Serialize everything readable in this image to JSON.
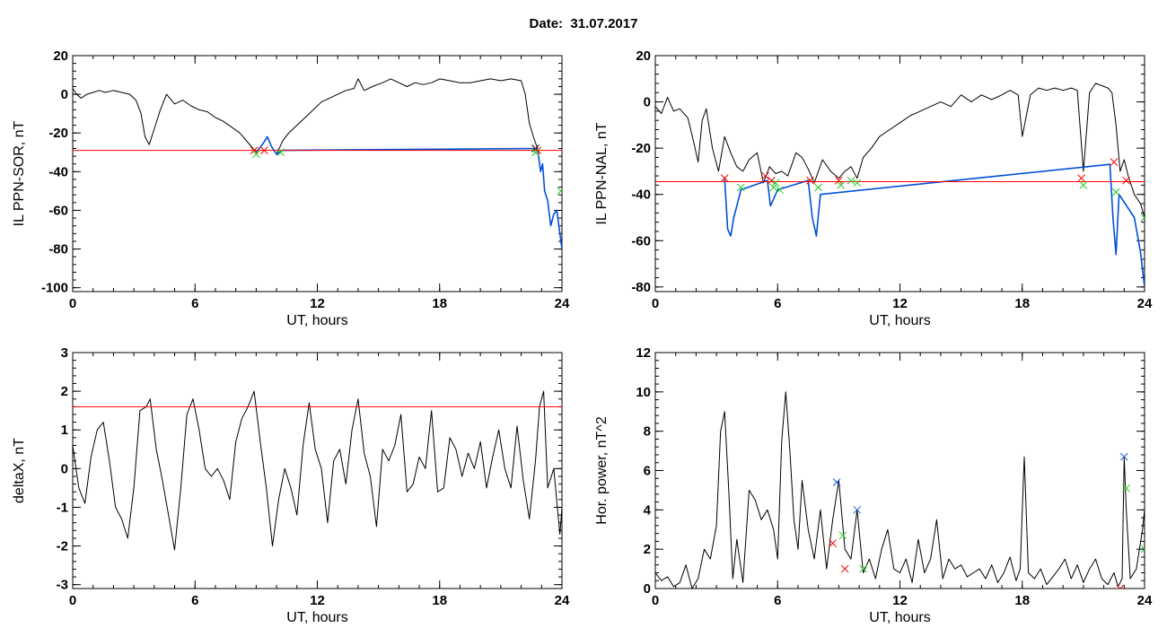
{
  "figure": {
    "title_label": "Date:",
    "title_value": "31.07.2017"
  },
  "colors": {
    "trace": "#000000",
    "threshold": "#ff0000",
    "highlight": "#0050d8",
    "cross_red": "#ff0000",
    "cross_green": "#22cc22",
    "cross_blue": "#1f5fd8",
    "cross_dark": "#000000"
  },
  "chart_data": [
    {
      "type": "line",
      "id": "ppn-sor",
      "xlabel": "UT, hours",
      "ylabel": "IL PPN-SOR, nT",
      "xlim": [
        0,
        24
      ],
      "ylim": [
        -102,
        20
      ],
      "xticks": [
        0,
        6,
        12,
        18,
        24
      ],
      "yticks": [
        20,
        0,
        -20,
        -40,
        -60,
        -80,
        -100
      ],
      "threshold": -29,
      "series": [
        {
          "style": "trace",
          "x": [
            0,
            0.2,
            0.4,
            0.7,
            1.0,
            1.3,
            1.6,
            2.0,
            2.4,
            2.8,
            3.1,
            3.35,
            3.55,
            3.75,
            4.0,
            4.3,
            4.6,
            5.0,
            5.4,
            5.8,
            6.2,
            6.6,
            7.0,
            7.4,
            7.8,
            8.2,
            8.6,
            9.0,
            9.3,
            9.55,
            9.75,
            10.0,
            10.3,
            10.6,
            11.0,
            11.4,
            11.8,
            12.2,
            12.6,
            13.0,
            13.4,
            13.8,
            14.0,
            14.3,
            14.7,
            15.2,
            15.6,
            16.0,
            16.4,
            16.8,
            17.2,
            17.6,
            18.0,
            18.5,
            19.0,
            19.5,
            20.0,
            20.5,
            21.0,
            21.5,
            22.0,
            22.2,
            22.4,
            22.6,
            22.8
          ],
          "y": [
            3,
            0,
            -2,
            0,
            1,
            2,
            1,
            2,
            1,
            0,
            -3,
            -10,
            -22,
            -26,
            -18,
            -8,
            0,
            -5,
            -3,
            -6,
            -8,
            -9,
            -12,
            -14,
            -17,
            -20,
            -25,
            -30,
            -26,
            -22,
            -27,
            -31,
            -24,
            -20,
            -16,
            -12,
            -8,
            -4,
            -2,
            0,
            2,
            3,
            8,
            2,
            4,
            6,
            8,
            6,
            4,
            6,
            5,
            6,
            8,
            7,
            6,
            6,
            7,
            8,
            7,
            8,
            7,
            0,
            -15,
            -22,
            -28
          ]
        },
        {
          "style": "highlight",
          "x": [
            9.0,
            9.3,
            9.55,
            9.75,
            10.0,
            10.3,
            22.8,
            22.95,
            23.05,
            23.15,
            23.3,
            23.45,
            23.6,
            23.75,
            23.9,
            24.0
          ],
          "y": [
            -30,
            -26,
            -22,
            -27,
            -31,
            -29,
            -28,
            -40,
            -36,
            -50,
            -55,
            -68,
            -62,
            -60,
            -72,
            -80
          ]
        }
      ],
      "markers": [
        {
          "x": 8.9,
          "y": -29,
          "color": "red"
        },
        {
          "x": 9.4,
          "y": -29,
          "color": "red"
        },
        {
          "x": 9.0,
          "y": -31,
          "color": "green"
        },
        {
          "x": 10.2,
          "y": -30,
          "color": "green"
        },
        {
          "x": 22.7,
          "y": -28,
          "color": "dark"
        },
        {
          "x": 22.8,
          "y": -29,
          "color": "red"
        },
        {
          "x": 22.7,
          "y": -30,
          "color": "green"
        },
        {
          "x": 23.95,
          "y": -50,
          "color": "green"
        }
      ]
    },
    {
      "type": "line",
      "id": "ppn-nal",
      "xlabel": "UT, hours",
      "ylabel": "IL PPN-NAL, nT",
      "xlim": [
        0,
        24
      ],
      "ylim": [
        -82,
        20
      ],
      "xticks": [
        0,
        6,
        12,
        18,
        24
      ],
      "yticks": [
        20,
        0,
        -20,
        -40,
        -60,
        -80
      ],
      "threshold": -34.5,
      "series": [
        {
          "style": "trace",
          "x": [
            0,
            0.3,
            0.6,
            0.9,
            1.2,
            1.6,
            1.9,
            2.1,
            2.3,
            2.5,
            2.8,
            3.1,
            3.4,
            3.7,
            4.0,
            4.3,
            4.6,
            5.0,
            5.3,
            5.6,
            5.9,
            6.2,
            6.5,
            6.9,
            7.2,
            7.5,
            7.8,
            8.2,
            8.6,
            9.0,
            9.3,
            9.6,
            9.9,
            10.2,
            10.6,
            11.0,
            11.5,
            12.0,
            12.5,
            13.0,
            13.5,
            14.0,
            14.5,
            15.0,
            15.5,
            16.0,
            16.5,
            17.0,
            17.4,
            17.8,
            18.0,
            18.4,
            18.8,
            19.2,
            19.6,
            20.0,
            20.4,
            20.7,
            21.0,
            21.3,
            21.6,
            21.9,
            22.2,
            22.4,
            22.6,
            22.8,
            23.0,
            23.2,
            23.5,
            23.8,
            24.0
          ],
          "y": [
            -2,
            -5,
            2,
            -4,
            -3,
            -7,
            -18,
            -26,
            -8,
            -3,
            -20,
            -30,
            -15,
            -22,
            -28,
            -30,
            -25,
            -22,
            -35,
            -28,
            -31,
            -30,
            -32,
            -22,
            -24,
            -29,
            -35,
            -25,
            -30,
            -33,
            -30,
            -28,
            -33,
            -24,
            -20,
            -15,
            -12,
            -9,
            -6,
            -4,
            -2,
            0,
            -2,
            3,
            0,
            3,
            1,
            3,
            5,
            3,
            -15,
            3,
            6,
            5,
            6,
            5,
            6,
            5,
            -30,
            4,
            8,
            7,
            6,
            4,
            -10,
            -30,
            -25,
            -32,
            -40,
            -44,
            -50
          ]
        },
        {
          "style": "highlight",
          "x": [
            3.4,
            3.55,
            3.7,
            3.85,
            4.0,
            4.2,
            5.5,
            5.65,
            5.8,
            6.0,
            7.5,
            7.7,
            7.9,
            8.1,
            22.3,
            22.45,
            22.6,
            22.75,
            23.5,
            23.6,
            23.8,
            24.0
          ],
          "y": [
            -33,
            -55,
            -58,
            -50,
            -45,
            -38,
            -34,
            -45,
            -42,
            -38,
            -34,
            -50,
            -58,
            -40,
            -27,
            -50,
            -66,
            -40,
            -50,
            -55,
            -65,
            -80
          ]
        }
      ],
      "markers": [
        {
          "x": 3.4,
          "y": -33,
          "color": "red"
        },
        {
          "x": 4.2,
          "y": -37,
          "color": "green"
        },
        {
          "x": 5.4,
          "y": -32,
          "color": "red"
        },
        {
          "x": 5.7,
          "y": -34,
          "color": "red"
        },
        {
          "x": 5.8,
          "y": -37,
          "color": "green"
        },
        {
          "x": 5.9,
          "y": -35,
          "color": "green"
        },
        {
          "x": 6.1,
          "y": -38,
          "color": "green"
        },
        {
          "x": 7.6,
          "y": -34,
          "color": "red"
        },
        {
          "x": 8.0,
          "y": -37,
          "color": "green"
        },
        {
          "x": 9.0,
          "y": -34,
          "color": "red"
        },
        {
          "x": 9.1,
          "y": -36,
          "color": "green"
        },
        {
          "x": 9.6,
          "y": -34,
          "color": "green"
        },
        {
          "x": 9.9,
          "y": -35,
          "color": "green"
        },
        {
          "x": 20.9,
          "y": -33,
          "color": "red"
        },
        {
          "x": 21.0,
          "y": -36,
          "color": "green"
        },
        {
          "x": 22.5,
          "y": -26,
          "color": "red"
        },
        {
          "x": 22.6,
          "y": -39,
          "color": "green"
        },
        {
          "x": 23.1,
          "y": -34,
          "color": "red"
        },
        {
          "x": 24.0,
          "y": -50,
          "color": "green"
        }
      ]
    },
    {
      "type": "line",
      "id": "deltax",
      "xlabel": "UT, hours",
      "ylabel": "deltaX, nT",
      "xlim": [
        0,
        24
      ],
      "ylim": [
        -3.1,
        3
      ],
      "xticks": [
        0,
        6,
        12,
        18,
        24
      ],
      "yticks": [
        3,
        2,
        1,
        0,
        -1,
        -2,
        -3
      ],
      "threshold": 1.6,
      "series": [
        {
          "style": "trace",
          "x": [
            0,
            0.3,
            0.6,
            0.9,
            1.2,
            1.5,
            1.8,
            2.1,
            2.4,
            2.7,
            3.0,
            3.3,
            3.6,
            3.8,
            4.1,
            4.4,
            4.7,
            5.0,
            5.3,
            5.6,
            5.9,
            6.2,
            6.5,
            6.8,
            7.1,
            7.4,
            7.7,
            8.0,
            8.3,
            8.6,
            8.9,
            9.2,
            9.5,
            9.8,
            10.1,
            10.4,
            10.7,
            11.0,
            11.3,
            11.6,
            11.9,
            12.2,
            12.5,
            12.8,
            13.1,
            13.4,
            13.7,
            14.0,
            14.3,
            14.6,
            14.9,
            15.2,
            15.5,
            15.8,
            16.1,
            16.4,
            16.7,
            17.0,
            17.3,
            17.6,
            17.9,
            18.2,
            18.5,
            18.8,
            19.1,
            19.4,
            19.7,
            20.0,
            20.3,
            20.6,
            20.9,
            21.2,
            21.5,
            21.8,
            22.1,
            22.4,
            22.7,
            22.9,
            23.1,
            23.3,
            23.6,
            23.9,
            24.0
          ],
          "y": [
            0.6,
            -0.5,
            -0.9,
            0.3,
            1.0,
            1.2,
            0.2,
            -1.0,
            -1.3,
            -1.8,
            -0.5,
            1.5,
            1.6,
            1.8,
            0.5,
            -0.3,
            -1.2,
            -2.1,
            -0.5,
            1.4,
            1.8,
            1.0,
            0,
            -0.2,
            0,
            -0.3,
            -0.8,
            0.7,
            1.3,
            1.6,
            2.0,
            0.7,
            -0.5,
            -2.0,
            -0.8,
            0,
            -0.5,
            -1.2,
            0.6,
            1.7,
            0.5,
            0,
            -1.4,
            0.2,
            0.5,
            -0.4,
            1.0,
            1.8,
            0.4,
            -0.2,
            -1.5,
            0.5,
            0.2,
            0.6,
            1.4,
            -0.6,
            -0.4,
            0.3,
            0,
            1.5,
            -0.6,
            -0.5,
            0.8,
            0.5,
            -0.2,
            0.4,
            0,
            0.7,
            -0.5,
            0.3,
            1.0,
            0,
            -0.5,
            1.1,
            -0.3,
            -1.3,
            0.2,
            1.6,
            2.0,
            -0.5,
            0,
            -1.7,
            -1.0
          ]
        }
      ],
      "markers": []
    },
    {
      "type": "line",
      "id": "hor-power",
      "xlabel": "UT, hours",
      "ylabel": "Hor. power, nT^2",
      "xlim": [
        0,
        24
      ],
      "ylim": [
        0,
        12
      ],
      "xticks": [
        0,
        6,
        12,
        18,
        24
      ],
      "yticks": [
        12,
        10,
        8,
        6,
        4,
        2,
        0
      ],
      "threshold": null,
      "series": [
        {
          "style": "trace",
          "x": [
            0,
            0.3,
            0.6,
            0.9,
            1.2,
            1.5,
            1.8,
            2.1,
            2.4,
            2.7,
            3.0,
            3.2,
            3.4,
            3.6,
            3.8,
            4.0,
            4.3,
            4.6,
            4.9,
            5.2,
            5.5,
            5.8,
            6.0,
            6.2,
            6.4,
            6.6,
            6.8,
            7.0,
            7.2,
            7.5,
            7.8,
            8.1,
            8.4,
            8.7,
            9.0,
            9.3,
            9.6,
            9.9,
            10.2,
            10.5,
            10.8,
            11.1,
            11.4,
            11.7,
            12.0,
            12.3,
            12.6,
            12.9,
            13.2,
            13.5,
            13.8,
            14.1,
            14.4,
            14.7,
            15.0,
            15.3,
            15.6,
            15.9,
            16.2,
            16.5,
            16.8,
            17.1,
            17.4,
            17.7,
            17.9,
            18.0,
            18.1,
            18.3,
            18.6,
            18.9,
            19.2,
            19.5,
            19.8,
            20.1,
            20.4,
            20.7,
            21.0,
            21.3,
            21.6,
            21.9,
            22.2,
            22.5,
            22.7,
            22.9,
            23.0,
            23.1,
            23.3,
            23.6,
            23.9,
            24.0
          ],
          "y": [
            0.8,
            0.4,
            0.6,
            0.1,
            0.3,
            1.2,
            0,
            0.5,
            2.0,
            1.5,
            3.2,
            8.0,
            9.0,
            5.0,
            0.5,
            2.5,
            0.3,
            5.0,
            4.5,
            3.5,
            4.0,
            3.0,
            1.5,
            7.5,
            10.0,
            7.0,
            3.5,
            2.0,
            5.5,
            3.0,
            1.5,
            4.0,
            1.0,
            3.5,
            5.5,
            2.0,
            1.5,
            4.0,
            0.8,
            1.5,
            0.5,
            2.0,
            3.0,
            1.0,
            0.8,
            1.5,
            0.3,
            2.5,
            0.8,
            1.5,
            3.5,
            0.5,
            1.5,
            1.0,
            1.2,
            0.6,
            0.8,
            1.0,
            0.5,
            1.2,
            0.3,
            0.8,
            1.6,
            0.4,
            1.0,
            4.0,
            6.7,
            0.8,
            0.5,
            1.0,
            0.2,
            0.6,
            1.0,
            1.5,
            0.5,
            1.2,
            0.3,
            1.0,
            1.5,
            0.5,
            0.2,
            0.8,
            0.1,
            0.5,
            6.7,
            4.0,
            0.5,
            1.0,
            3.0,
            4.0
          ]
        }
      ],
      "markers": [
        {
          "x": 8.7,
          "y": 2.3,
          "color": "red"
        },
        {
          "x": 8.9,
          "y": 5.4,
          "color": "blue"
        },
        {
          "x": 9.2,
          "y": 2.7,
          "color": "green"
        },
        {
          "x": 9.3,
          "y": 1.0,
          "color": "red"
        },
        {
          "x": 9.9,
          "y": 4.0,
          "color": "blue"
        },
        {
          "x": 10.2,
          "y": 1.0,
          "color": "green"
        },
        {
          "x": 22.8,
          "y": 0,
          "color": "red"
        },
        {
          "x": 23.0,
          "y": 6.7,
          "color": "blue"
        },
        {
          "x": 23.1,
          "y": 5.1,
          "color": "green"
        },
        {
          "x": 24.0,
          "y": 2.0,
          "color": "green"
        }
      ]
    }
  ]
}
